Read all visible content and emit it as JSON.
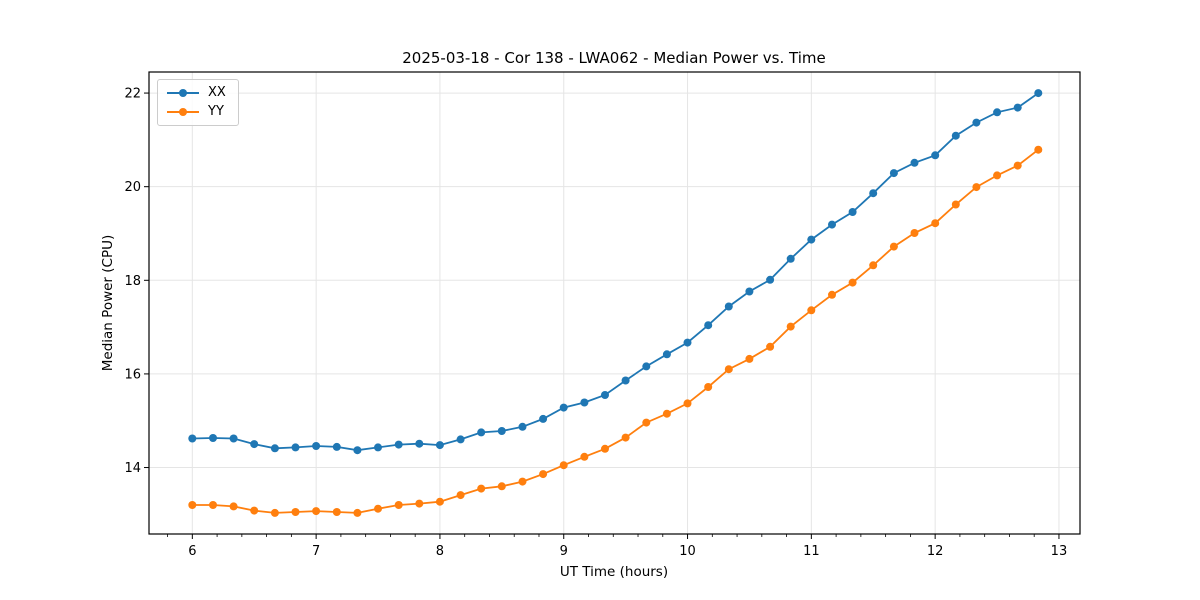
{
  "chart_data": {
    "type": "line",
    "title": "2025-03-18 - Cor 138 - LWA062 - Median Power vs. Time",
    "xlabel": "UT Time (hours)",
    "ylabel": "Median Power (CPU)",
    "xlim": [
      5.65,
      13.17
    ],
    "ylim": [
      12.58,
      22.45
    ],
    "x_major_ticks": [
      6,
      7,
      8,
      9,
      10,
      11,
      12,
      13
    ],
    "x_minor_tick_step": 0.2,
    "y_major_ticks": [
      14,
      16,
      18,
      20,
      22
    ],
    "grid": true,
    "grid_color": "#e5e5e5",
    "legend_position": "upper-left",
    "x": [
      6.0,
      6.167,
      6.333,
      6.5,
      6.667,
      6.833,
      7.0,
      7.167,
      7.333,
      7.5,
      7.667,
      7.833,
      8.0,
      8.167,
      8.333,
      8.5,
      8.667,
      8.833,
      9.0,
      9.167,
      9.333,
      9.5,
      9.667,
      9.833,
      10.0,
      10.167,
      10.333,
      10.5,
      10.667,
      10.833,
      11.0,
      11.167,
      11.333,
      11.5,
      11.667,
      11.833,
      12.0,
      12.167,
      12.333,
      12.5,
      12.667,
      12.833
    ],
    "series": [
      {
        "name": "XX",
        "color": "#1f77b4",
        "values": [
          14.62,
          14.63,
          14.62,
          14.5,
          14.41,
          14.43,
          14.46,
          14.44,
          14.37,
          14.43,
          14.49,
          14.51,
          14.48,
          14.6,
          14.75,
          14.78,
          14.87,
          15.04,
          15.28,
          15.39,
          15.55,
          15.86,
          16.16,
          16.42,
          16.67,
          17.04,
          17.44,
          17.76,
          18.01,
          18.46,
          18.87,
          19.19,
          19.46,
          19.86,
          20.29,
          20.51,
          20.67,
          21.09,
          21.37,
          21.59,
          21.69,
          22.0
        ]
      },
      {
        "name": "YY",
        "color": "#ff7f0e",
        "values": [
          13.2,
          13.2,
          13.17,
          13.08,
          13.03,
          13.05,
          13.07,
          13.05,
          13.03,
          13.12,
          13.2,
          13.23,
          13.27,
          13.41,
          13.55,
          13.6,
          13.7,
          13.86,
          14.05,
          14.23,
          14.4,
          14.64,
          14.96,
          15.15,
          15.37,
          15.72,
          16.1,
          16.32,
          16.58,
          17.01,
          17.36,
          17.69,
          17.95,
          18.32,
          18.72,
          19.01,
          19.22,
          19.62,
          19.99,
          20.24,
          20.45,
          20.79
        ]
      }
    ]
  }
}
